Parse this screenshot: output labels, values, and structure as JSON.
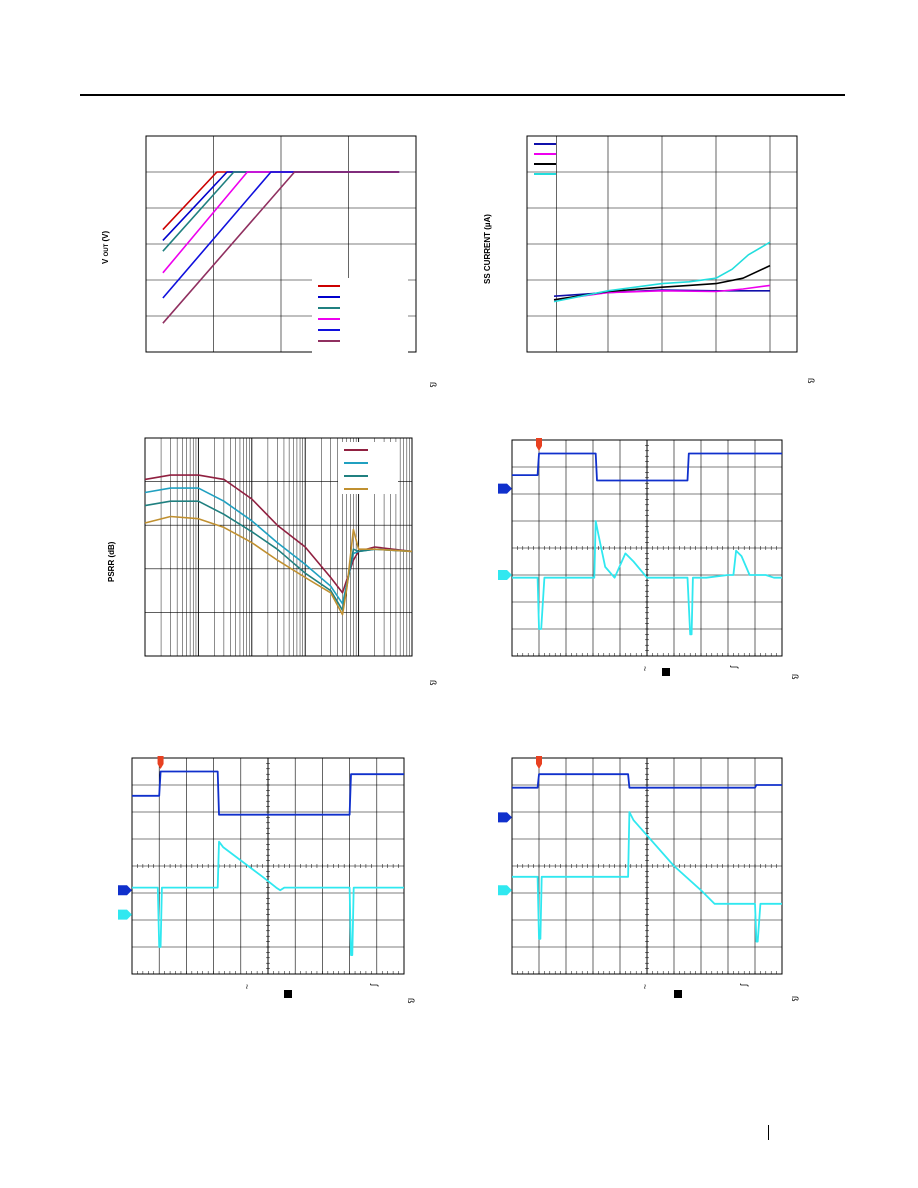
{
  "page": {
    "page_number_mark": "|"
  },
  "chart_data": [
    {
      "id": "vout",
      "type": "line",
      "title": "",
      "ylabel_main": "V",
      "ylabel_sub": "OUT",
      "ylabel_unit": "(V)",
      "xlabel": "",
      "corner_glyph": "ß",
      "xlim": [
        0,
        8
      ],
      "ylim": [
        0,
        6
      ],
      "grid": true,
      "legend_position": "bottom-right",
      "series": [
        {
          "color": "#cc0000",
          "x": [
            0.5,
            2.1,
            7.5
          ],
          "y": [
            3.4,
            5.0,
            5.0
          ]
        },
        {
          "color": "#0000cc",
          "x": [
            0.5,
            2.4,
            7.5
          ],
          "y": [
            3.1,
            5.0,
            5.0
          ]
        },
        {
          "color": "#208080",
          "x": [
            0.5,
            2.6,
            7.5
          ],
          "y": [
            2.8,
            5.0,
            5.0
          ]
        },
        {
          "color": "#ee00ee",
          "x": [
            0.5,
            3.0,
            7.5
          ],
          "y": [
            2.2,
            5.0,
            5.0
          ]
        },
        {
          "color": "#1010dd",
          "x": [
            0.5,
            3.7,
            7.5
          ],
          "y": [
            1.5,
            5.0,
            5.0
          ]
        },
        {
          "color": "#903060",
          "x": [
            0.5,
            4.4,
            7.5
          ],
          "y": [
            0.8,
            5.0,
            5.0
          ]
        }
      ]
    },
    {
      "id": "sscurrent",
      "type": "line",
      "title": "",
      "ylabel": "SS CURRENT (µA)",
      "xlabel": "",
      "corner_glyph": "ß",
      "xlim": [
        0,
        5
      ],
      "ylim": [
        0,
        6
      ],
      "grid": true,
      "legend_position": "top-left",
      "series": [
        {
          "color": "#1010aa",
          "x": [
            0.5,
            1.5,
            2.5,
            3.5,
            4.5
          ],
          "y": [
            1.55,
            1.65,
            1.72,
            1.7,
            1.7
          ]
        },
        {
          "color": "#ee00ee",
          "x": [
            0.5,
            1.5,
            2.5,
            3.5,
            4.0,
            4.5
          ],
          "y": [
            1.45,
            1.65,
            1.7,
            1.68,
            1.75,
            1.85
          ]
        },
        {
          "color": "#000000",
          "x": [
            0.5,
            1.5,
            2.5,
            3.0,
            3.5,
            4.0,
            4.5
          ],
          "y": [
            1.45,
            1.68,
            1.8,
            1.85,
            1.9,
            2.05,
            2.4
          ]
        },
        {
          "color": "#22dddd",
          "x": [
            0.5,
            1.5,
            2.5,
            3.0,
            3.5,
            3.8,
            4.1,
            4.5
          ],
          "y": [
            1.4,
            1.7,
            1.9,
            1.95,
            2.05,
            2.3,
            2.7,
            3.05
          ]
        }
      ]
    },
    {
      "id": "psrr",
      "type": "line",
      "title": "",
      "ylabel": "PSRR (dB)",
      "xlabel": "",
      "corner_glyph": "ß",
      "xscale": "log",
      "xlim": [
        10,
        1000000
      ],
      "ylim": [
        0,
        5
      ],
      "grid": true,
      "legend_position": "top-right",
      "series": [
        {
          "color": "#902040",
          "x": [
            10,
            30,
            100,
            300,
            1000,
            3000,
            10000,
            30000,
            50000,
            60000,
            80000,
            100000,
            200000,
            1000000
          ],
          "y": [
            4.05,
            4.15,
            4.15,
            4.05,
            3.6,
            3.0,
            2.5,
            1.8,
            1.45,
            1.75,
            2.2,
            2.4,
            2.5,
            2.4
          ]
        },
        {
          "color": "#20a0c0",
          "x": [
            10,
            30,
            100,
            300,
            1000,
            3000,
            10000,
            30000,
            50000,
            60000,
            80000,
            100000,
            200000,
            1000000
          ],
          "y": [
            3.75,
            3.85,
            3.85,
            3.55,
            3.1,
            2.6,
            2.1,
            1.6,
            1.2,
            1.65,
            2.35,
            2.4,
            2.45,
            2.4
          ]
        },
        {
          "color": "#208080",
          "x": [
            10,
            30,
            100,
            300,
            1000,
            3000,
            10000,
            30000,
            50000,
            60000,
            80000,
            100000,
            200000,
            1000000
          ],
          "y": [
            3.45,
            3.55,
            3.55,
            3.25,
            2.85,
            2.45,
            1.9,
            1.5,
            1.05,
            1.6,
            2.45,
            2.4,
            2.45,
            2.4
          ]
        },
        {
          "color": "#c09030",
          "x": [
            10,
            30,
            100,
            300,
            1000,
            3000,
            10000,
            30000,
            50000,
            60000,
            80000,
            100000,
            200000,
            1000000
          ],
          "y": [
            3.05,
            3.2,
            3.15,
            2.95,
            2.6,
            2.2,
            1.8,
            1.45,
            0.95,
            1.55,
            2.9,
            2.45,
            2.45,
            2.4
          ]
        }
      ]
    },
    {
      "id": "scope1",
      "type": "line",
      "title": "",
      "xlabel": "",
      "corner_glyph": "ß",
      "marks": [
        "~",
        "ʃ"
      ],
      "xlim": [
        0,
        10
      ],
      "ylim": [
        0,
        8
      ],
      "grid": true,
      "series": [
        {
          "color": "#1030cc",
          "x": [
            0,
            0.95,
            1.0,
            3.1,
            3.15,
            6.5,
            6.55,
            10
          ],
          "y": [
            6.7,
            6.7,
            7.5,
            7.5,
            6.5,
            6.5,
            7.5,
            7.5
          ]
        },
        {
          "color": "#30e8f0",
          "x": [
            0,
            0.95,
            1.0,
            1.08,
            1.2,
            1.4,
            1.6,
            2.0,
            3.05,
            3.1,
            3.2,
            3.45,
            3.8,
            4.2,
            4.5,
            5.0,
            6.5,
            6.6,
            6.65,
            6.7,
            6.9,
            7.2,
            8.0,
            8.2,
            8.3,
            8.5,
            8.8,
            9.4,
            9.7,
            10
          ],
          "y": [
            2.9,
            2.9,
            1.0,
            1.0,
            2.9,
            2.9,
            2.9,
            2.9,
            2.9,
            5.0,
            4.5,
            3.3,
            2.9,
            3.8,
            3.5,
            2.9,
            2.9,
            0.8,
            0.8,
            2.9,
            2.9,
            2.9,
            3.0,
            3.0,
            3.9,
            3.7,
            3.0,
            3.0,
            2.9,
            2.9
          ]
        }
      ]
    },
    {
      "id": "scope2",
      "type": "line",
      "title": "",
      "xlabel": "",
      "corner_glyph": "ß",
      "marks": [
        "~",
        "ʃ"
      ],
      "xlim": [
        0,
        10
      ],
      "ylim": [
        0,
        8
      ],
      "grid": true,
      "series": [
        {
          "color": "#1030cc",
          "x": [
            0,
            1.0,
            1.05,
            3.15,
            3.2,
            8.0,
            8.05,
            10
          ],
          "y": [
            6.6,
            6.6,
            7.5,
            7.5,
            5.9,
            5.9,
            7.4,
            7.4
          ]
        },
        {
          "color": "#30e8f0",
          "x": [
            0,
            0.95,
            1.0,
            1.05,
            1.1,
            3.15,
            3.2,
            3.35,
            4.8,
            5.3,
            5.45,
            5.6,
            5.7,
            6.5,
            7.5,
            8.0,
            8.05,
            8.1,
            8.15,
            10
          ],
          "y": [
            3.2,
            3.2,
            1.0,
            1.0,
            3.2,
            3.2,
            4.9,
            4.7,
            3.6,
            3.2,
            3.1,
            3.2,
            3.2,
            3.2,
            3.2,
            3.2,
            0.7,
            0.7,
            3.2,
            3.2
          ]
        }
      ]
    },
    {
      "id": "scope3",
      "type": "line",
      "title": "",
      "xlabel": "",
      "corner_glyph": "ß",
      "marks": [
        "~",
        "ʃ"
      ],
      "xlim": [
        0,
        10
      ],
      "ylim": [
        0,
        8
      ],
      "grid": true,
      "series": [
        {
          "color": "#1030cc",
          "x": [
            0,
            0.95,
            1.0,
            4.3,
            4.35,
            9.0,
            9.05,
            10
          ],
          "y": [
            6.9,
            6.9,
            7.4,
            7.4,
            6.9,
            6.9,
            7.0,
            7.0
          ]
        },
        {
          "color": "#30e8f0",
          "x": [
            0,
            0.95,
            1.0,
            1.05,
            1.1,
            4.3,
            4.35,
            4.5,
            6.0,
            7.0,
            7.5,
            8.0,
            8.5,
            9.0,
            9.05,
            9.1,
            9.2,
            10
          ],
          "y": [
            3.6,
            3.6,
            1.3,
            1.3,
            3.6,
            3.6,
            6.0,
            5.7,
            4.0,
            3.1,
            2.6,
            2.6,
            2.6,
            2.6,
            1.2,
            1.2,
            2.6,
            2.6
          ]
        }
      ]
    }
  ]
}
